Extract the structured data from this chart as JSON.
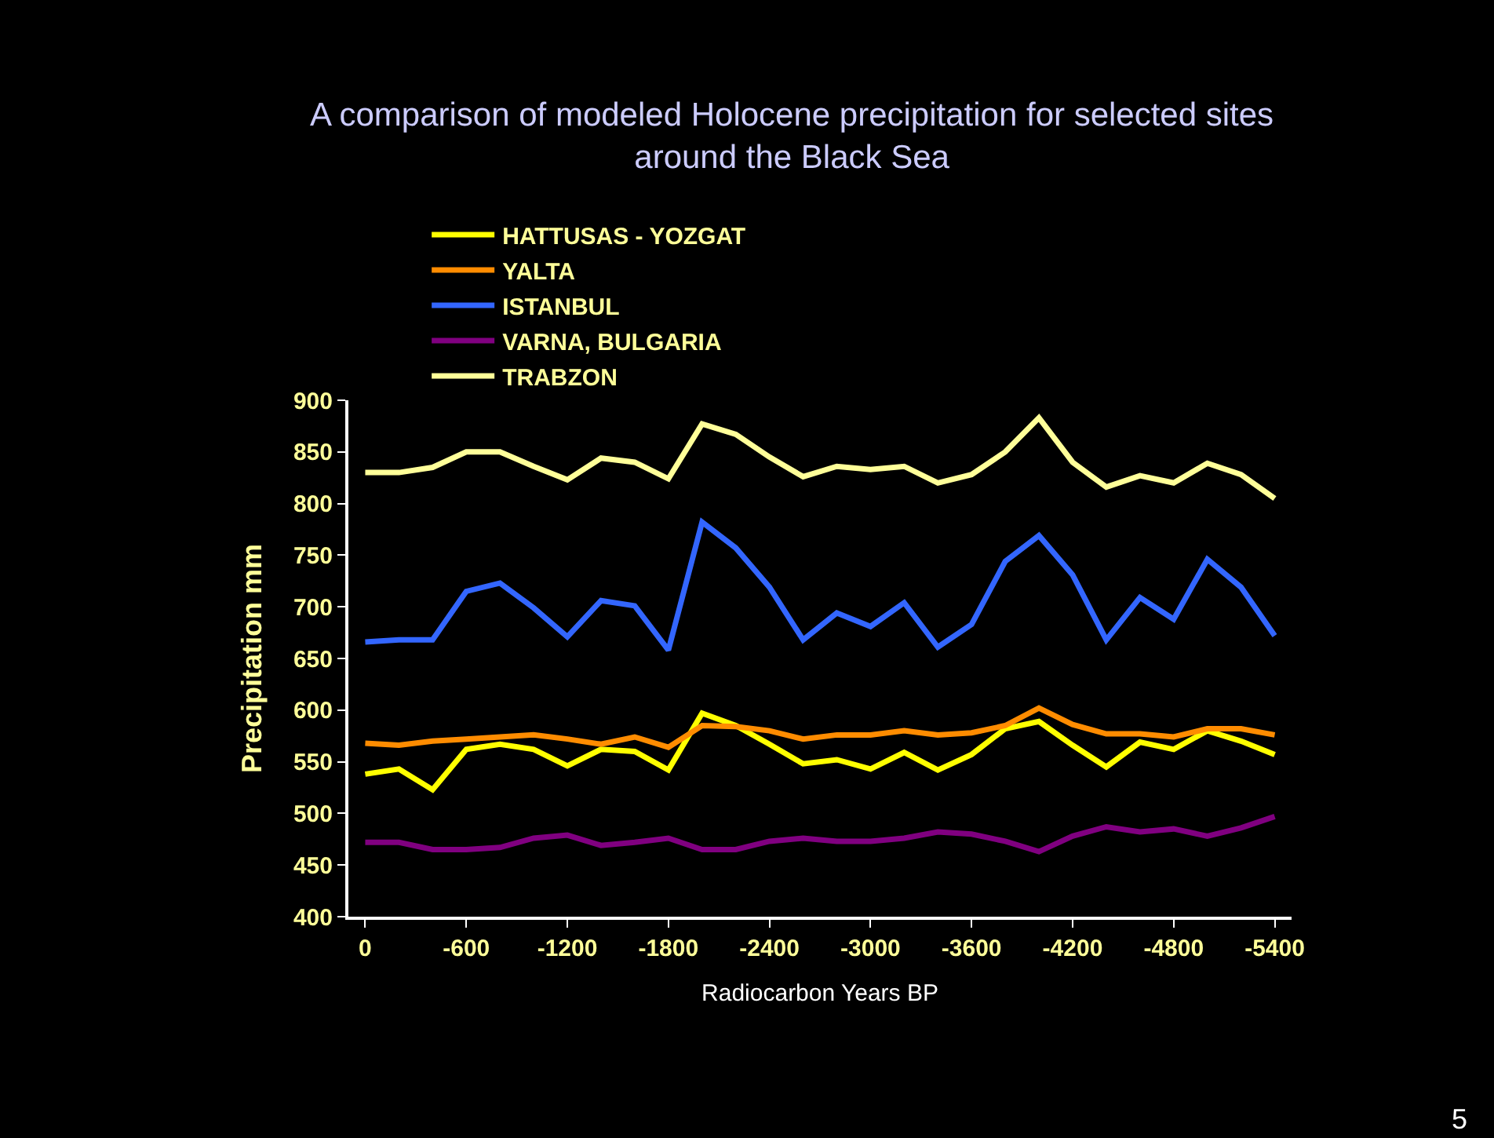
{
  "chart_data": {
    "type": "line",
    "title": "A comparison of modeled Holocene precipitation for selected sites around the Black Sea",
    "xlabel": "Radiocarbon Years BP",
    "ylabel": "Precipitation mm",
    "x": [
      0,
      -200,
      -400,
      -600,
      -800,
      -1000,
      -1200,
      -1400,
      -1600,
      -1800,
      -2000,
      -2200,
      -2400,
      -2600,
      -2800,
      -3000,
      -3200,
      -3400,
      -3600,
      -3800,
      -4000,
      -4200,
      -4400,
      -4600,
      -4800,
      -5000,
      -5200,
      -5400
    ],
    "xlim": [
      100,
      -5500
    ],
    "xticks": [
      0,
      -600,
      -1200,
      -1800,
      -2400,
      -3000,
      -3600,
      -4200,
      -4800,
      -5400
    ],
    "ylim": [
      400,
      900
    ],
    "yticks": [
      400,
      450,
      500,
      550,
      600,
      650,
      700,
      750,
      800,
      850,
      900
    ],
    "series": [
      {
        "name": "HATTUSAS - YOZGAT",
        "color": "#ffff00",
        "values": [
          538,
          543,
          523,
          562,
          567,
          562,
          546,
          562,
          560,
          542,
          597,
          585,
          567,
          548,
          552,
          543,
          559,
          542,
          557,
          582,
          589,
          566,
          545,
          569,
          562,
          580,
          570,
          557
        ]
      },
      {
        "name": "YALTA",
        "color": "#ff8c00",
        "values": [
          568,
          566,
          570,
          572,
          574,
          576,
          572,
          567,
          574,
          564,
          585,
          584,
          580,
          572,
          576,
          576,
          580,
          576,
          578,
          585,
          602,
          586,
          577,
          577,
          574,
          582,
          582,
          576
        ]
      },
      {
        "name": "ISTANBUL",
        "color": "#3366ff",
        "values": [
          666,
          668,
          668,
          715,
          723,
          699,
          671,
          706,
          701,
          658,
          782,
          757,
          719,
          668,
          694,
          681,
          704,
          661,
          683,
          744,
          769,
          731,
          668,
          709,
          688,
          746,
          719,
          672
        ]
      },
      {
        "name": "VARNA, BULGARIA",
        "color": "#800080",
        "values": [
          472,
          472,
          465,
          465,
          467,
          476,
          479,
          469,
          472,
          476,
          465,
          465,
          473,
          476,
          473,
          473,
          476,
          482,
          480,
          473,
          463,
          478,
          487,
          482,
          485,
          478,
          486,
          497
        ]
      },
      {
        "name": "TRABZON",
        "color": "#ffff99",
        "values": [
          830,
          830,
          835,
          850,
          850,
          836,
          823,
          844,
          840,
          824,
          877,
          867,
          845,
          826,
          836,
          833,
          836,
          820,
          828,
          850,
          883,
          840,
          816,
          827,
          820,
          839,
          828,
          805
        ]
      }
    ],
    "legend": "top left",
    "grid": false,
    "marker": "none",
    "line_style": "solid",
    "annotations": [
      "5"
    ]
  }
}
